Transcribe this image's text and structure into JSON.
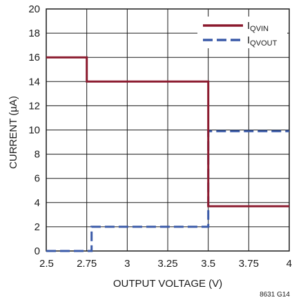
{
  "chart_data": {
    "type": "line",
    "title": "",
    "xlabel": "OUTPUT VOLTAGE (V)",
    "ylabel": "CURRENT (µA)",
    "xlim": [
      2.5,
      4
    ],
    "ylim": [
      0,
      20
    ],
    "x_ticks": [
      "2.5",
      "2.75",
      "3",
      "3.25",
      "3.5",
      "3.75",
      "4"
    ],
    "y_ticks": [
      "0",
      "2",
      "4",
      "6",
      "8",
      "10",
      "12",
      "14",
      "16",
      "18",
      "20"
    ],
    "grid": true,
    "legend_position": "top-right",
    "series": [
      {
        "name": "I",
        "name_sub": "QVIN",
        "color": "#8b1a2e",
        "style": "solid",
        "x": [
          2.5,
          2.75,
          2.75,
          3.5,
          3.5,
          4.0
        ],
        "y": [
          16,
          16,
          14,
          14,
          3.7,
          3.7
        ]
      },
      {
        "name": "I",
        "name_sub": "QVOUT",
        "color": "#3a5aa8",
        "style": "dashed",
        "x": [
          2.5,
          2.78,
          2.78,
          3.5,
          3.5,
          4.0
        ],
        "y": [
          0,
          0,
          2,
          2,
          9.9,
          9.9
        ]
      }
    ],
    "figure_id": "8631 G14"
  },
  "colors": {
    "grid": "#1a1a1a",
    "background": "#ffffff"
  }
}
